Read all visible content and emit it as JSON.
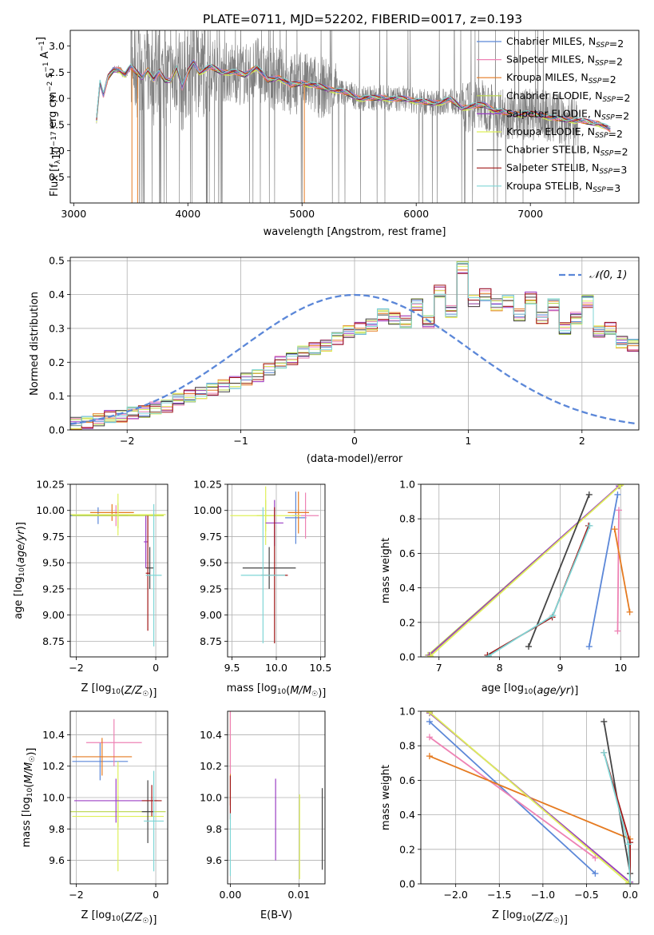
{
  "colors": {
    "chabrier_miles": "#5b87d8",
    "salpeter_miles": "#ee82b4",
    "kroupa_miles": "#e57a20",
    "chabrier_elodie": "#b9d64a",
    "salpeter_elodie": "#9b3fc4",
    "kroupa_elodie": "#dff05a",
    "chabrier_stelib": "#444444",
    "salpeter_stelib": "#a01818",
    "kroupa_stelib": "#7fd6d6",
    "gaussian": "#5b87d8",
    "raw": "#808080"
  },
  "chart_data": [
    {
      "id": "spectrum",
      "type": "line",
      "title": "PLATE=0711, MJD=52202, FIBERID=0017, z=0.193",
      "xlabel": "wavelength [Angstrom, rest frame]",
      "ylabel": "Flux [f_λ10^-17 erg cm^-2 s^-1 A^-1]",
      "xlim": [
        2970,
        7950
      ],
      "ylim": [
        0.0,
        3.3
      ],
      "xticks": [
        3000,
        4000,
        5000,
        6000,
        7000
      ],
      "yticks": [
        0.5,
        1.0,
        1.5,
        2.0,
        2.5,
        3.0
      ],
      "grid": false,
      "legend_position": "top-right",
      "legend": [
        {
          "label": "Chabrier MILES, N",
          "sub": "SSP",
          "suffix": "=2"
        },
        {
          "label": "Salpeter MILES, N",
          "sub": "SSP",
          "suffix": "=2"
        },
        {
          "label": "Kroupa MILES, N",
          "sub": "SSP",
          "suffix": "=2"
        },
        {
          "label": "Chabrier ELODIE, N",
          "sub": "SSP",
          "suffix": "=2"
        },
        {
          "label": "Salpeter ELODIE, N",
          "sub": "SSP",
          "suffix": "=2"
        },
        {
          "label": "Kroupa ELODIE, N",
          "sub": "SSP",
          "suffix": "=2"
        },
        {
          "label": "Chabrier STELIB, N",
          "sub": "SSP",
          "suffix": "=2"
        },
        {
          "label": "Salpeter STELIB, N",
          "sub": "SSP",
          "suffix": "=3"
        },
        {
          "label": "Kroupa STELIB, N",
          "sub": "SSP",
          "suffix": "=3"
        }
      ],
      "model_curve": {
        "x": [
          3200,
          3230,
          3260,
          3300,
          3350,
          3400,
          3450,
          3500,
          3550,
          3600,
          3650,
          3700,
          3750,
          3800,
          3850,
          3900,
          3950,
          4000,
          4050,
          4100,
          4150,
          4200,
          4300,
          4400,
          4500,
          4600,
          4700,
          4800,
          4900,
          5000,
          5100,
          5200,
          5300,
          5400,
          5500,
          5600,
          5700,
          5800,
          5900,
          6000,
          6100,
          6200,
          6300,
          6400,
          6500,
          6600,
          6700,
          6800,
          6900,
          7000,
          7100,
          7200,
          7300,
          7400,
          7500,
          7600,
          7700
        ],
        "y": [
          1.6,
          2.3,
          2.05,
          2.4,
          2.55,
          2.55,
          2.45,
          2.6,
          2.5,
          2.4,
          2.55,
          2.35,
          2.5,
          2.35,
          2.35,
          2.6,
          2.2,
          2.5,
          2.7,
          2.5,
          2.55,
          2.6,
          2.5,
          2.5,
          2.45,
          2.6,
          2.35,
          2.4,
          2.25,
          2.3,
          2.25,
          2.2,
          2.15,
          2.1,
          2.0,
          2.0,
          2.02,
          1.98,
          2.0,
          1.95,
          1.92,
          1.92,
          1.98,
          1.82,
          1.85,
          1.88,
          1.75,
          1.72,
          1.7,
          1.7,
          1.68,
          1.62,
          1.6,
          1.58,
          1.55,
          1.52,
          1.4
        ]
      }
    },
    {
      "id": "residuals",
      "type": "histogram",
      "xlabel": "(data-model)/error",
      "ylabel": "Normed distribution",
      "xlim": [
        -2.5,
        2.5
      ],
      "ylim": [
        0.0,
        0.51
      ],
      "xticks": [
        -2,
        -1,
        0,
        1,
        2
      ],
      "yticks": [
        0.0,
        0.1,
        0.2,
        0.3,
        0.4,
        0.5
      ],
      "grid": true,
      "legend_position": "top-right",
      "legend": [
        {
          "label": "𝒩(0, 1)"
        }
      ],
      "bin_width": 0.1,
      "bin_start": -2.5,
      "counts": [
        0.02,
        0.022,
        0.03,
        0.04,
        0.04,
        0.05,
        0.055,
        0.065,
        0.07,
        0.09,
        0.1,
        0.11,
        0.12,
        0.13,
        0.14,
        0.15,
        0.16,
        0.18,
        0.2,
        0.21,
        0.23,
        0.24,
        0.25,
        0.27,
        0.29,
        0.3,
        0.31,
        0.34,
        0.33,
        0.32,
        0.37,
        0.32,
        0.41,
        0.35,
        0.48,
        0.38,
        0.4,
        0.37,
        0.38,
        0.34,
        0.39,
        0.33,
        0.37,
        0.3,
        0.33,
        0.38,
        0.29,
        0.3,
        0.26,
        0.25,
        0.24,
        0.22,
        0.2,
        0.18,
        0.16,
        0.14,
        0.12,
        0.1,
        0.09,
        0.08,
        0.07,
        0.05,
        0.04,
        0.04,
        0.035,
        0.03,
        0.03,
        0.03,
        0.04,
        0.04,
        0.05
      ]
    },
    {
      "id": "age_vs_Z",
      "type": "errorbar",
      "xlabel": "Z [log10(Z/Z☉)]",
      "ylabel": "age  [log10(age/yr)]",
      "xlim": [
        -2.15,
        0.3
      ],
      "ylim": [
        8.6,
        10.25
      ],
      "xticks": [
        -2,
        0
      ],
      "yticks": [
        8.75,
        9.0,
        9.25,
        9.5,
        9.75,
        10.0,
        10.25
      ],
      "grid": true,
      "points": [
        {
          "model": "chabrier_miles",
          "x": -1.45,
          "y": 9.95,
          "xerr": 0.75,
          "yerr": 0.08
        },
        {
          "model": "salpeter_miles",
          "x": -1.0,
          "y": 9.95,
          "xerr": 0.6,
          "yerr": 0.1
        },
        {
          "model": "kroupa_miles",
          "x": -1.1,
          "y": 9.98,
          "xerr": 0.55,
          "yerr": 0.08
        },
        {
          "model": "chabrier_elodie",
          "x": -0.95,
          "y": 9.95,
          "xerr": 1.15,
          "yerr": 0.12
        },
        {
          "model": "kroupa_elodie",
          "x": -0.95,
          "y": 9.96,
          "xerr": 1.2,
          "yerr": 0.2
        },
        {
          "model": "salpeter_elodie",
          "x": -0.25,
          "y": 9.7,
          "xerr": 0.05,
          "yerr": 0.25
        },
        {
          "model": "chabrier_stelib",
          "x": -0.15,
          "y": 9.45,
          "xerr": 0.1,
          "yerr": 0.2
        },
        {
          "model": "salpeter_stelib",
          "x": -0.2,
          "y": 9.4,
          "xerr": 0.05,
          "yerr": 0.55
        },
        {
          "model": "kroupa_stelib",
          "x": -0.05,
          "y": 9.38,
          "xerr": 0.2,
          "yerr": 0.68
        }
      ]
    },
    {
      "id": "age_vs_mass",
      "type": "errorbar",
      "xlabel": "mass [log10(M/M☉)]",
      "ylabel": "",
      "xlim": [
        9.45,
        10.55
      ],
      "ylim": [
        8.6,
        10.25
      ],
      "xticks": [
        9.5,
        10.0,
        10.5
      ],
      "yticks": [
        8.75,
        9.0,
        9.25,
        9.5,
        9.75,
        10.0,
        10.25
      ],
      "grid": true,
      "points": [
        {
          "model": "chabrier_miles",
          "x": 10.22,
          "y": 9.93,
          "xerr": 0.12,
          "yerr": 0.25
        },
        {
          "model": "salpeter_miles",
          "x": 10.33,
          "y": 9.95,
          "xerr": 0.15,
          "yerr": 0.22
        },
        {
          "model": "kroupa_miles",
          "x": 10.25,
          "y": 9.98,
          "xerr": 0.12,
          "yerr": 0.2
        },
        {
          "model": "chabrier_elodie",
          "x": 9.88,
          "y": 9.95,
          "xerr": 0.1,
          "yerr": 0.15
        },
        {
          "model": "kroupa_elodie",
          "x": 9.88,
          "y": 9.95,
          "xerr": 0.4,
          "yerr": 0.28
        },
        {
          "model": "salpeter_elodie",
          "x": 9.98,
          "y": 9.88,
          "xerr": 0.1,
          "yerr": 0.22
        },
        {
          "model": "chabrier_stelib",
          "x": 9.92,
          "y": 9.45,
          "xerr": 0.3,
          "yerr": 0.2
        },
        {
          "model": "salpeter_stelib",
          "x": 9.98,
          "y": 9.38,
          "xerr": 0.15,
          "yerr": 0.65
        },
        {
          "model": "kroupa_stelib",
          "x": 9.85,
          "y": 9.38,
          "xerr": 0.25,
          "yerr": 0.65
        }
      ]
    },
    {
      "id": "weight_vs_age",
      "type": "line",
      "xlabel": "age  [log10(age/yr)]",
      "ylabel": "mass weight",
      "xlim": [
        6.7,
        10.3
      ],
      "ylim": [
        0.0,
        1.0
      ],
      "xticks": [
        7,
        8,
        9,
        10
      ],
      "yticks": [
        0.0,
        0.2,
        0.4,
        0.6,
        0.8,
        1.0
      ],
      "grid": true,
      "series": [
        {
          "model": "chabrier_miles",
          "x": [
            9.48,
            9.95
          ],
          "y": [
            0.06,
            0.94
          ]
        },
        {
          "model": "salpeter_miles",
          "x": [
            9.95,
            9.97
          ],
          "y": [
            0.15,
            0.85
          ]
        },
        {
          "model": "kroupa_miles",
          "x": [
            9.9,
            10.15
          ],
          "y": [
            0.74,
            0.26
          ]
        },
        {
          "model": "chabrier_elodie",
          "x": [
            6.82,
            9.98
          ],
          "y": [
            0.01,
            0.99
          ]
        },
        {
          "model": "salpeter_elodie",
          "x": [
            6.84,
            9.97
          ],
          "y": [
            0.01,
            0.99
          ]
        },
        {
          "model": "kroupa_elodie",
          "x": [
            6.86,
            10.0
          ],
          "y": [
            0.005,
            0.995
          ]
        },
        {
          "model": "chabrier_stelib",
          "x": [
            8.48,
            9.48
          ],
          "y": [
            0.06,
            0.94
          ]
        },
        {
          "model": "salpeter_stelib",
          "x": [
            7.8,
            8.87,
            9.47
          ],
          "y": [
            0.01,
            0.23,
            0.76
          ]
        },
        {
          "model": "kroupa_stelib",
          "x": [
            7.82,
            8.88,
            9.49
          ],
          "y": [
            0.005,
            0.24,
            0.76
          ]
        }
      ]
    },
    {
      "id": "mass_vs_Z",
      "type": "errorbar",
      "xlabel": "Z [log10(Z/Z☉)]",
      "ylabel": "mass [log10(M/M☉)]",
      "xlim": [
        -2.15,
        0.3
      ],
      "ylim": [
        9.45,
        10.55
      ],
      "xticks": [
        -2,
        0
      ],
      "yticks": [
        9.6,
        9.8,
        10.0,
        10.2,
        10.4
      ],
      "grid": true,
      "points": [
        {
          "model": "chabrier_miles",
          "x": -1.4,
          "y": 10.23,
          "xerr": 0.7,
          "yerr": 0.12
        },
        {
          "model": "salpeter_miles",
          "x": -1.05,
          "y": 10.35,
          "xerr": 0.7,
          "yerr": 0.15
        },
        {
          "model": "kroupa_miles",
          "x": -1.35,
          "y": 10.26,
          "xerr": 0.75,
          "yerr": 0.12
        },
        {
          "model": "chabrier_elodie",
          "x": -0.95,
          "y": 9.91,
          "xerr": 1.2,
          "yerr": 0.1
        },
        {
          "model": "kroupa_elodie",
          "x": -0.95,
          "y": 9.88,
          "xerr": 1.15,
          "yerr": 0.35
        },
        {
          "model": "salpeter_elodie",
          "x": -1.0,
          "y": 9.98,
          "xerr": 1.05,
          "yerr": 0.14
        },
        {
          "model": "chabrier_stelib",
          "x": -0.2,
          "y": 9.91,
          "xerr": 0.15,
          "yerr": 0.2
        },
        {
          "model": "salpeter_stelib",
          "x": -0.1,
          "y": 9.98,
          "xerr": 0.25,
          "yerr": 0.1
        },
        {
          "model": "kroupa_stelib",
          "x": -0.05,
          "y": 9.85,
          "xerr": 0.25,
          "yerr": 0.32
        }
      ]
    },
    {
      "id": "mass_vs_ebv",
      "type": "errorbar",
      "xlabel": "E(B-V)",
      "ylabel": "",
      "xlim": [
        -0.0004,
        0.0138
      ],
      "ylim": [
        9.45,
        10.55
      ],
      "xticks": [
        0.0,
        0.01
      ],
      "yticks": [
        9.6,
        9.8,
        10.0,
        10.2,
        10.4
      ],
      "grid": true,
      "points": [
        {
          "model": "kroupa_miles",
          "x": 0.0,
          "y": 10.25,
          "xerr": 0,
          "yerr": 0.3
        },
        {
          "model": "salpeter_miles",
          "x": 0.0,
          "y": 10.35,
          "xerr": 0,
          "yerr": 0.2
        },
        {
          "model": "salpeter_stelib",
          "x": 0.0,
          "y": 10.0,
          "xerr": 0,
          "yerr": 0.14
        },
        {
          "model": "kroupa_stelib",
          "x": 0.0,
          "y": 9.7,
          "xerr": 0,
          "yerr": 0.2
        },
        {
          "model": "salpeter_elodie",
          "x": 0.0066,
          "y": 9.86,
          "xerr": 0,
          "yerr": 0.26
        },
        {
          "model": "kroupa_elodie",
          "x": 0.0101,
          "y": 9.75,
          "xerr": 0,
          "yerr": 0.27
        },
        {
          "model": "chabrier_stelib",
          "x": 0.0134,
          "y": 9.8,
          "xerr": 0,
          "yerr": 0.26
        }
      ]
    },
    {
      "id": "weight_vs_Z",
      "type": "line",
      "xlabel": "Z [log10(Z/Z☉)]",
      "ylabel": "mass weight",
      "xlim": [
        -2.4,
        0.1
      ],
      "ylim": [
        0.0,
        1.0
      ],
      "xticks": [
        -2.0,
        -1.5,
        -1.0,
        -0.5,
        0.0
      ],
      "yticks": [
        0.0,
        0.2,
        0.4,
        0.6,
        0.8,
        1.0
      ],
      "grid": true,
      "series": [
        {
          "model": "chabrier_miles",
          "x": [
            -2.3,
            -0.4
          ],
          "y": [
            0.94,
            0.06
          ]
        },
        {
          "model": "salpeter_miles",
          "x": [
            -2.3,
            -0.4
          ],
          "y": [
            0.85,
            0.15
          ]
        },
        {
          "model": "kroupa_miles",
          "x": [
            -2.3,
            0.0
          ],
          "y": [
            0.74,
            0.26
          ]
        },
        {
          "model": "chabrier_elodie",
          "x": [
            -2.3,
            0.0
          ],
          "y": [
            0.99,
            0.01
          ]
        },
        {
          "model": "salpeter_elodie",
          "x": [
            -2.3,
            0.0
          ],
          "y": [
            0.99,
            0.01
          ]
        },
        {
          "model": "kroupa_elodie",
          "x": [
            -2.3,
            -0.02
          ],
          "y": [
            0.995,
            0.005
          ]
        },
        {
          "model": "chabrier_stelib",
          "x": [
            -0.3,
            0.0
          ],
          "y": [
            0.94,
            0.06
          ]
        },
        {
          "model": "salpeter_stelib",
          "x": [
            -0.3,
            0.0,
            0.0
          ],
          "y": [
            0.76,
            0.24,
            0.0
          ]
        },
        {
          "model": "kroupa_stelib",
          "x": [
            -0.3,
            -0.02,
            0.0
          ],
          "y": [
            0.76,
            0.23,
            0.0
          ]
        }
      ]
    }
  ]
}
